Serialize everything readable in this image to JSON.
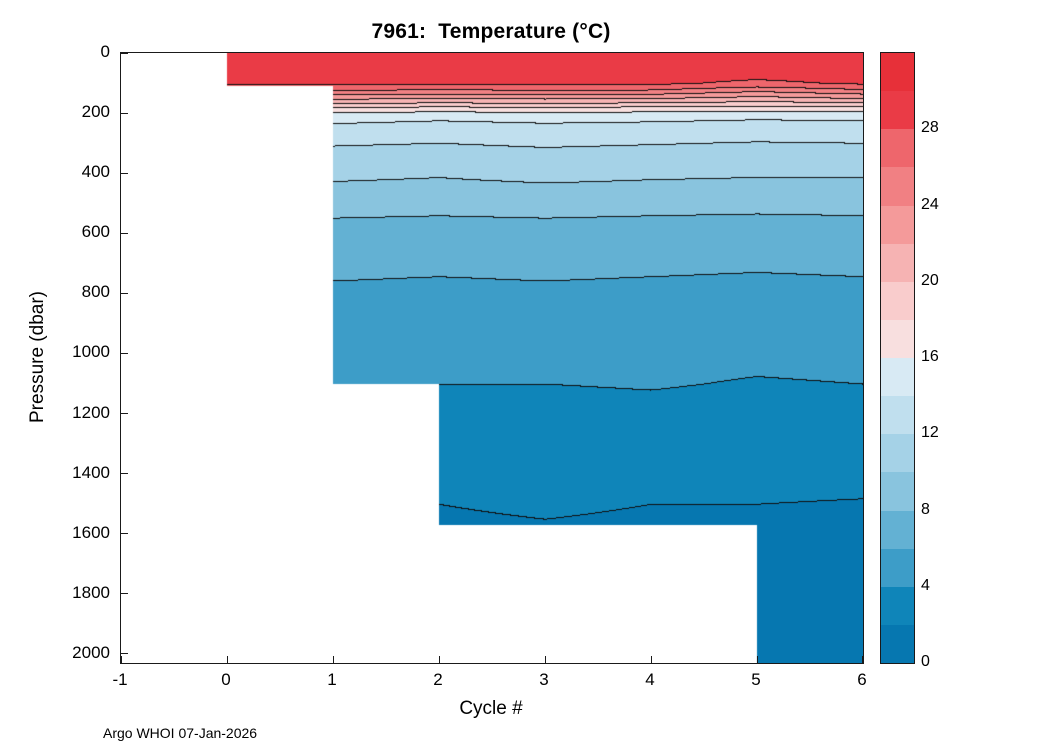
{
  "title": "7961:  Temperature (°C)",
  "footer": "Argo WHOI 07-Jan-2026",
  "axes": {
    "x": {
      "label": "Cycle #",
      "range": [
        -1,
        6
      ],
      "ticks": [
        -1,
        0,
        1,
        2,
        3,
        4,
        5,
        6
      ]
    },
    "y": {
      "label": "Pressure (dbar)",
      "range": [
        0,
        2030
      ],
      "direction": "reversed-0-at-top",
      "ticks": [
        0,
        200,
        400,
        600,
        800,
        1000,
        1200,
        1400,
        1600,
        1800,
        2000
      ]
    }
  },
  "colorbar": {
    "range": [
      0,
      32
    ],
    "band_size": 2,
    "ticks": [
      0,
      4,
      8,
      12,
      16,
      20,
      24,
      28
    ],
    "colors": [
      "#0677b0",
      "#0f85b9",
      "#3d9dc8",
      "#63b1d3",
      "#89c4de",
      "#a5d2e7",
      "#c0dfee",
      "#d8eaf4",
      "#f8dfdf",
      "#f9cccc",
      "#f6b3b3",
      "#f49a9a",
      "#f18083",
      "#ee666c",
      "#ea3b46",
      "#e73039"
    ]
  },
  "chart_data": {
    "type": "heatmap",
    "title": "7961:  Temperature (°C)",
    "xlabel": "Cycle #",
    "ylabel": "Pressure (dbar)",
    "units": "°C",
    "xlim": [
      -1,
      6
    ],
    "ylim": [
      0,
      2030
    ],
    "y_axis_reversed": true,
    "contour_interval": 2,
    "x": [
      0,
      1,
      2,
      3,
      4,
      5,
      6
    ],
    "pressures": [
      0,
      60,
      100,
      120,
      135,
      150,
      165,
      185,
      210,
      280,
      350,
      420,
      480,
      540,
      620,
      700,
      800,
      900,
      1000,
      1100,
      1300,
      1500,
      1750,
      2030
    ],
    "values": [
      [
        29.4,
        29.5,
        29.3,
        29.6,
        29.4,
        29.2,
        29.5
      ],
      [
        29.0,
        29.1,
        28.9,
        29.2,
        29.0,
        28.8,
        29.1
      ],
      [
        28.3,
        28.4,
        28.2,
        28.5,
        28.3,
        27.6,
        28.2
      ],
      [
        26.2,
        26.5,
        26.0,
        26.4,
        26.2,
        24.8,
        26.0
      ],
      [
        24.2,
        24.4,
        24.0,
        24.3,
        24.1,
        23.0,
        24.0
      ],
      [
        22.1,
        22.3,
        22.0,
        22.2,
        22.0,
        21.2,
        22.0
      ],
      [
        20.0,
        20.2,
        19.9,
        20.1,
        19.9,
        19.4,
        19.8
      ],
      [
        17.0,
        17.2,
        16.9,
        17.1,
        16.9,
        16.6,
        16.8
      ],
      [
        14.6,
        14.7,
        14.4,
        14.6,
        14.5,
        14.3,
        14.4
      ],
      [
        12.5,
        12.6,
        12.4,
        12.7,
        12.5,
        12.3,
        12.4
      ],
      [
        11.0,
        11.1,
        10.9,
        11.2,
        11.0,
        10.8,
        10.9
      ],
      [
        10.0,
        10.1,
        9.9,
        10.2,
        10.0,
        9.9,
        9.9
      ],
      [
        9.0,
        9.1,
        8.9,
        9.1,
        9.0,
        8.9,
        8.9
      ],
      [
        8.0,
        8.1,
        8.0,
        8.1,
        8.0,
        7.9,
        8.0
      ],
      [
        7.0,
        7.1,
        7.0,
        7.1,
        7.0,
        6.9,
        7.0
      ],
      [
        6.3,
        6.4,
        6.3,
        6.4,
        6.3,
        6.2,
        6.3
      ],
      [
        5.6,
        5.7,
        5.6,
        5.7,
        5.6,
        5.5,
        5.6
      ],
      [
        5.0,
        5.1,
        5.0,
        5.1,
        5.0,
        4.9,
        5.0
      ],
      [
        4.4,
        4.5,
        4.4,
        4.5,
        4.4,
        4.3,
        4.4
      ],
      [
        4.0,
        4.1,
        4.0,
        4.0,
        4.1,
        3.9,
        4.0
      ],
      [
        3.0,
        3.1,
        3.0,
        3.0,
        3.1,
        3.0,
        3.0
      ],
      [
        2.1,
        2.1,
        2.0,
        2.1,
        2.0,
        2.0,
        1.9
      ],
      [
        1.6,
        1.6,
        1.6,
        1.6,
        1.6,
        1.6,
        1.5
      ],
      [
        1.2,
        1.2,
        1.2,
        1.2,
        1.2,
        1.2,
        1.1
      ]
    ],
    "max_pressure_by_cycle_interval": [
      110,
      1100,
      1570,
      1570,
      1570,
      2030
    ]
  }
}
